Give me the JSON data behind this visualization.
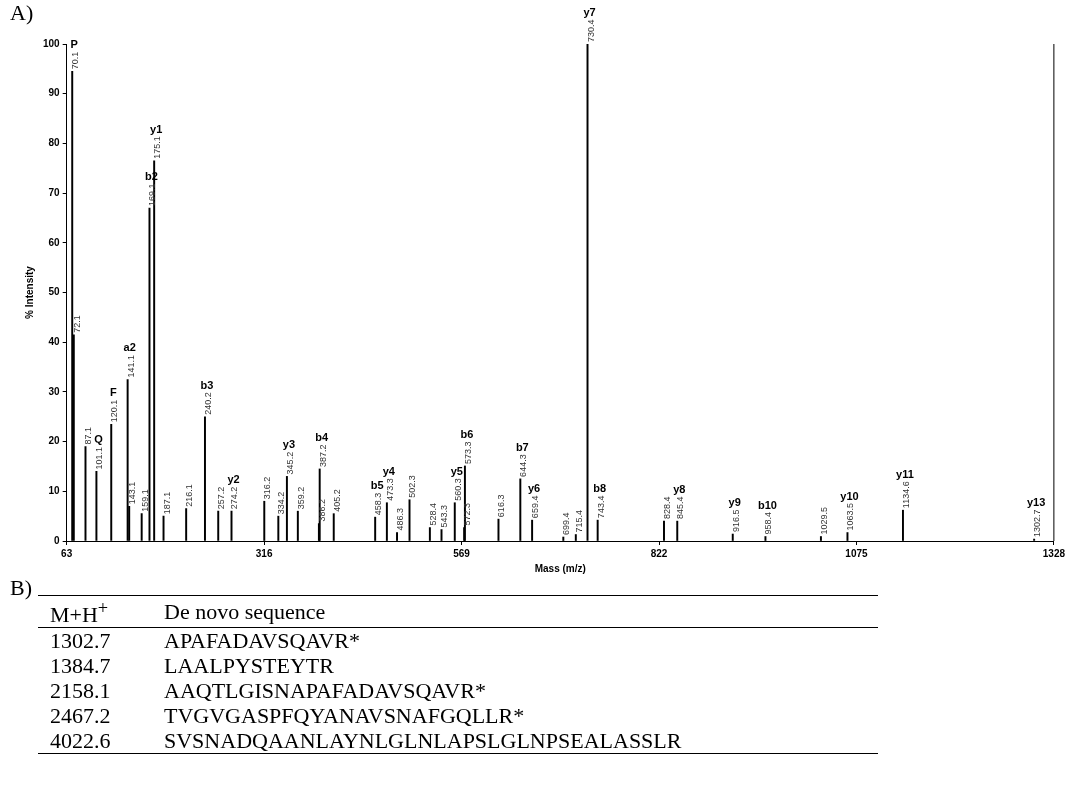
{
  "chart_data": [
    {
      "type": "bar",
      "xlabel": "Mass (m/z)",
      "ylabel": "% Intensity",
      "color": "#000000",
      "x": [
        70.1,
        72.1,
        87.1,
        101.1,
        120.1,
        141.1,
        143.1,
        159.1,
        169.1,
        175.1,
        187.1,
        216.1,
        240.2,
        257.2,
        274.2,
        316.2,
        334.2,
        345.2,
        359.2,
        386.2,
        387.2,
        405.2,
        458.3,
        473.3,
        486.3,
        502.3,
        528.4,
        543.3,
        560.3,
        572.3,
        573.3,
        616.3,
        644.3,
        659.4,
        699.4,
        715.4,
        730.4,
        743.4,
        828.4,
        845.4,
        916.5,
        958.4,
        1029.5,
        1063.5,
        1134.6,
        1302.7
      ],
      "values": [
        94.5,
        41.5,
        19,
        14,
        23.5,
        32.5,
        7,
        5.5,
        67,
        76.5,
        5,
        6.5,
        25,
        6,
        6,
        8,
        5,
        13,
        6,
        3.5,
        14.5,
        5.5,
        4.8,
        7.7,
        1.7,
        8.3,
        2.7,
        2.3,
        7.7,
        2.7,
        15.1,
        4.4,
        12.5,
        4.2,
        0.8,
        1.3,
        100,
        4.2,
        4,
        4,
        1.4,
        0.9,
        0.9,
        1.7,
        6.2,
        0.4
      ],
      "xlim": [
        63,
        1328
      ],
      "xticks": [
        63,
        316,
        569,
        822,
        1075,
        1328
      ],
      "ylim": [
        0,
        100
      ],
      "yticks": [
        0,
        10,
        20,
        30,
        40,
        50,
        60,
        70,
        80,
        90,
        100
      ],
      "annotations": [
        "A)",
        {
          "text": "70.1",
          "x": 70.1,
          "y": 94.5
        },
        {
          "text": "72.1",
          "x": 72.1,
          "y": 41.5
        },
        {
          "text": "87.1",
          "x": 87.1,
          "y": 19
        },
        {
          "text": "101.1",
          "x": 101.1,
          "y": 14
        },
        {
          "text": "120.1",
          "x": 120.1,
          "y": 23.5
        },
        {
          "text": "141.1",
          "x": 141.1,
          "y": 32.5
        },
        {
          "text": "143.1",
          "x": 143.1,
          "y": 7
        },
        {
          "text": "159.1",
          "x": 159.1,
          "y": 5.5
        },
        {
          "text": "169.1",
          "x": 169.1,
          "y": 67
        },
        {
          "text": "175.1",
          "x": 175.1,
          "y": 76.5
        },
        {
          "text": "187.1",
          "x": 187.1,
          "y": 5
        },
        {
          "text": "216.1",
          "x": 216.1,
          "y": 6.5
        },
        {
          "text": "240.2",
          "x": 240.2,
          "y": 25
        },
        {
          "text": "257.2",
          "x": 257.2,
          "y": 6
        },
        {
          "text": "274.2",
          "x": 274.2,
          "y": 6
        },
        {
          "text": "316.2",
          "x": 316.2,
          "y": 8
        },
        {
          "text": "334.2",
          "x": 334.2,
          "y": 5
        },
        {
          "text": "345.2",
          "x": 345.2,
          "y": 13
        },
        {
          "text": "359.2",
          "x": 359.2,
          "y": 6
        },
        {
          "text": "386.2",
          "x": 386.2,
          "y": 3.5
        },
        {
          "text": "387.2",
          "x": 387.2,
          "y": 14.5
        },
        {
          "text": "405.2",
          "x": 405.2,
          "y": 5.5
        },
        {
          "text": "458.3",
          "x": 458.3,
          "y": 4.8
        },
        {
          "text": "473.3",
          "x": 473.3,
          "y": 7.7
        },
        {
          "text": "486.3",
          "x": 486.3,
          "y": 1.7
        },
        {
          "text": "502.3",
          "x": 502.3,
          "y": 8.3
        },
        {
          "text": "528.4",
          "x": 528.4,
          "y": 2.7
        },
        {
          "text": "543.3",
          "x": 543.3,
          "y": 2.3
        },
        {
          "text": "560.3",
          "x": 560.3,
          "y": 7.7
        },
        {
          "text": "572.3",
          "x": 572.3,
          "y": 2.7
        },
        {
          "text": "573.3",
          "x": 573.3,
          "y": 15.1
        },
        {
          "text": "616.3",
          "x": 616.3,
          "y": 4.4
        },
        {
          "text": "644.3",
          "x": 644.3,
          "y": 12.5
        },
        {
          "text": "659.4",
          "x": 659.4,
          "y": 4.2
        },
        {
          "text": "699.4",
          "x": 699.4,
          "y": 0.8
        },
        {
          "text": "715.4",
          "x": 715.4,
          "y": 1.3
        },
        {
          "text": "730.4",
          "x": 730.4,
          "y": 100
        },
        {
          "text": "743.4",
          "x": 743.4,
          "y": 4.2
        },
        {
          "text": "828.4",
          "x": 828.4,
          "y": 4
        },
        {
          "text": "845.4",
          "x": 845.4,
          "y": 4
        },
        {
          "text": "916.5",
          "x": 916.5,
          "y": 1.4
        },
        {
          "text": "958.4",
          "x": 958.4,
          "y": 0.9
        },
        {
          "text": "1029.5",
          "x": 1029.5,
          "y": 0.9
        },
        {
          "text": "1063.5",
          "x": 1063.5,
          "y": 1.7
        },
        {
          "text": "1134.6",
          "x": 1134.6,
          "y": 6.2
        },
        {
          "text": "1302.7",
          "x": 1302.7,
          "y": 0.4
        },
        {
          "text": "P",
          "x": 70.1,
          "y": 94.5
        },
        {
          "text": "Q",
          "x": 101.1,
          "y": 14
        },
        {
          "text": "F",
          "x": 120.1,
          "y": 23.5
        },
        {
          "text": "a2",
          "x": 141.1,
          "y": 32.5
        },
        {
          "text": "b2",
          "x": 169.1,
          "y": 67
        },
        {
          "text": "y1",
          "x": 175.1,
          "y": 76.5
        },
        {
          "text": "b3",
          "x": 240.2,
          "y": 25
        },
        {
          "text": "y2",
          "x": 274.2,
          "y": 6
        },
        {
          "text": "y3",
          "x": 345.2,
          "y": 13
        },
        {
          "text": "b4",
          "x": 387.2,
          "y": 14.5
        },
        {
          "text": "b5",
          "x": 458.3,
          "y": 4.8
        },
        {
          "text": "y4",
          "x": 473.3,
          "y": 7.7
        },
        {
          "text": "y5",
          "x": 560.3,
          "y": 7.7
        },
        {
          "text": "b6",
          "x": 573.3,
          "y": 15.1
        },
        {
          "text": "b7",
          "x": 644.3,
          "y": 12.5
        },
        {
          "text": "y6",
          "x": 659.4,
          "y": 4.2
        },
        {
          "text": "y7",
          "x": 730.4,
          "y": 100
        },
        {
          "text": "b8",
          "x": 743.4,
          "y": 4.2
        },
        {
          "text": "y8",
          "x": 845.4,
          "y": 4
        },
        {
          "text": "y9",
          "x": 916.5,
          "y": 1.4
        },
        {
          "text": "b10",
          "x": 958.4,
          "y": 0.9
        },
        {
          "text": "y10",
          "x": 1063.5,
          "y": 1.7
        },
        {
          "text": "y11",
          "x": 1134.6,
          "y": 6.2
        },
        {
          "text": "y13",
          "x": 1302.7,
          "y": 0.4
        }
      ]
    },
    {
      "type": "other",
      "annotations": [
        "B)",
        "M+H$^{+}$",
        "De novo sequence",
        "1302.7",
        "APAFADAVSQAVR*",
        "1384.7",
        "LAALPYSTEYTR",
        "2158.1",
        "AAQTLGISNAPAFADAVSQAVR*",
        "2467.2",
        "TVGVGASPFQYANAVSNAFGQLLR*",
        "4022.6",
        "SVSNADQAANLAYNLGLNLAPSLGLNPSEALASSLR"
      ]
    }
  ]
}
